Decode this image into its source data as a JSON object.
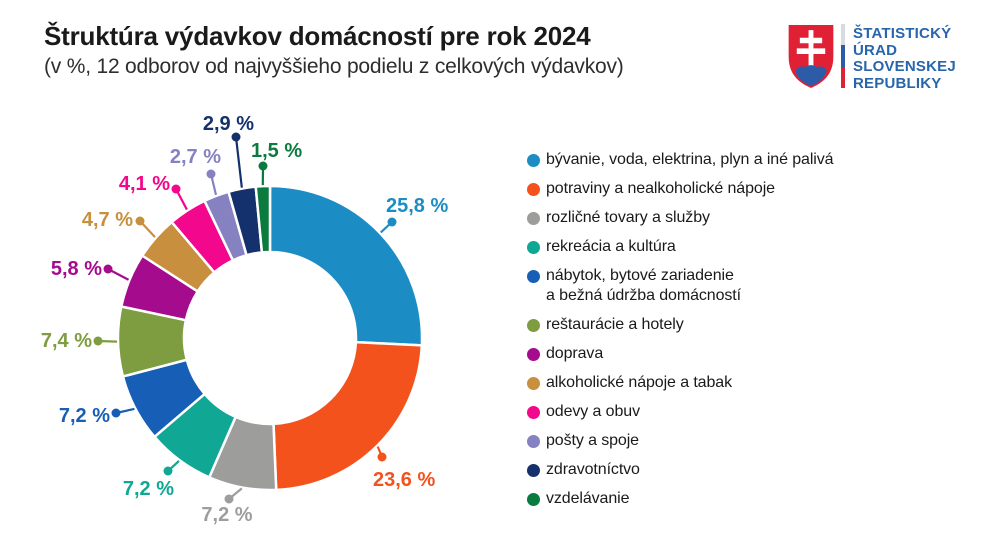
{
  "chart_data": {
    "type": "pie",
    "donut": true,
    "title": "Štruktúra výdavkov domácností pre rok 2024",
    "subtitle": "(v %, 12 odborov od najvyššieho podielu z celkových výdavkov)",
    "unit": "%",
    "legend_position": "right",
    "start_angle_deg": 0,
    "direction": "clockwise",
    "slices": [
      {
        "name": "bývanie, voda, elektrina, plyn a iné palivá",
        "value": 25.8,
        "display": "25,8 %",
        "color": "#1C8DC4",
        "label": {
          "dot": [
            392,
            222
          ],
          "text": [
            386,
            212
          ],
          "anchor": "start"
        }
      },
      {
        "name": "potraviny a nealkoholické nápoje",
        "value": 23.6,
        "display": "23,6 %",
        "color": "#F4521D",
        "label": {
          "dot": [
            382,
            457
          ],
          "text": [
            373,
            486
          ],
          "anchor": "start"
        }
      },
      {
        "name": "rozličné tovary a služby",
        "value": 7.2,
        "display": "7,2 %",
        "color": "#9D9D9C",
        "label": {
          "dot": [
            229,
            499
          ],
          "text": [
            227,
            521
          ],
          "anchor": "middle"
        }
      },
      {
        "name": "rekreácia a kultúra",
        "value": 7.2,
        "display": "7,2 %",
        "color": "#10A795",
        "label": {
          "dot": [
            168,
            471
          ],
          "text": [
            174,
            495
          ],
          "anchor": "end"
        }
      },
      {
        "name": "nábytok, bytové zariadenie\na bežná údržba domácností",
        "value": 7.2,
        "display": "7,2 %",
        "color": "#175FB6",
        "label": {
          "dot": [
            116,
            413
          ],
          "text": [
            110,
            422
          ],
          "anchor": "end"
        }
      },
      {
        "name": "reštaurácie a hotely",
        "value": 7.4,
        "display": "7,4 %",
        "color": "#7E9D40",
        "label": {
          "dot": [
            98,
            341
          ],
          "text": [
            92,
            347
          ],
          "anchor": "end"
        }
      },
      {
        "name": "doprava",
        "value": 5.8,
        "display": "5,8 %",
        "color": "#A50B8D",
        "label": {
          "dot": [
            108,
            269
          ],
          "text": [
            102,
            275
          ],
          "anchor": "end"
        }
      },
      {
        "name": "alkoholické nápoje a tabak",
        "value": 4.7,
        "display": "4,7 %",
        "color": "#C78F3E",
        "label": {
          "dot": [
            140,
            221
          ],
          "text": [
            133,
            226
          ],
          "anchor": "end"
        }
      },
      {
        "name": "odevy a obuv",
        "value": 4.1,
        "display": "4,1 %",
        "color": "#F2078D",
        "label": {
          "dot": [
            176,
            189
          ],
          "text": [
            170,
            190
          ],
          "anchor": "end"
        }
      },
      {
        "name": "pošty a spoje",
        "value": 2.7,
        "display": "2,7 %",
        "color": "#8682C1",
        "label": {
          "dot": [
            211,
            174
          ],
          "text": [
            221,
            163
          ],
          "anchor": "end"
        }
      },
      {
        "name": "zdravotníctvo",
        "value": 2.9,
        "display": "2,9 %",
        "color": "#15316D",
        "label": {
          "dot": [
            236,
            137
          ],
          "text": [
            254,
            130
          ],
          "anchor": "end"
        }
      },
      {
        "name": "vzdelávanie",
        "value": 1.5,
        "display": "1,5 %",
        "color": "#0B7A3E",
        "label": {
          "dot": [
            263,
            166
          ],
          "text": [
            251,
            157
          ],
          "anchor": "start"
        }
      }
    ]
  },
  "logo": {
    "lines": [
      "ŠTATISTICKÝ",
      "ÚRAD",
      "SLOVENSKEJ",
      "REPUBLIKY"
    ],
    "colors": {
      "text": "#2765AD",
      "shield_red": "#DF2035",
      "hill_blue": "#2C5CA7",
      "cross_white": "#FFFFFF",
      "stripe_light": "#D7DCE1"
    }
  }
}
